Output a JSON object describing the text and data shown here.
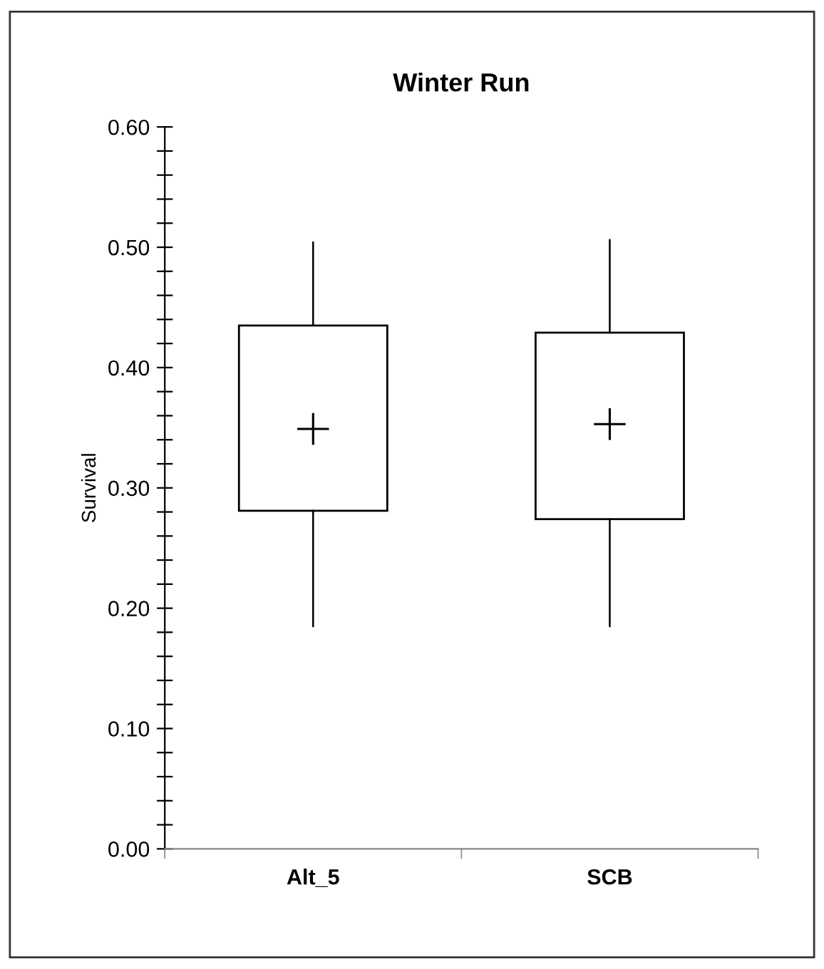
{
  "chart_data": {
    "type": "box",
    "title": "Winter Run",
    "ylabel": "Survival",
    "categories": [
      "Alt_5",
      "SCB"
    ],
    "boxes": [
      {
        "low": 0.185,
        "q1": 0.281,
        "q3": 0.435,
        "high": 0.504,
        "mean": 0.349
      },
      {
        "low": 0.185,
        "q1": 0.274,
        "q3": 0.429,
        "high": 0.506,
        "mean": 0.353
      }
    ],
    "marker": "cross",
    "grid": false,
    "legend": false,
    "ylim": [
      0,
      0.6
    ],
    "yticks": [
      "0.00",
      {
        "value": 0.02,
        "label": null
      },
      {
        "value": 0.04,
        "label": null
      },
      {
        "value": 0.06,
        "label": null
      },
      {
        "value": 0.08,
        "label": null
      },
      {
        "value": 0.1,
        "label": "0.10"
      },
      {
        "value": 0.12,
        "label": null
      },
      {
        "value": 0.14,
        "label": null
      },
      {
        "value": 0.16,
        "label": null
      },
      {
        "value": 0.18,
        "label": null
      },
      {
        "value": 0.2,
        "label": "0.20"
      },
      {
        "value": 0.22,
        "label": null
      },
      {
        "value": 0.24,
        "label": null
      },
      {
        "value": 0.26,
        "label": null
      },
      {
        "value": 0.28,
        "label": null
      },
      {
        "value": 0.3,
        "label": "0.30"
      },
      {
        "value": 0.32,
        "label": null
      },
      {
        "value": 0.34,
        "label": null
      },
      {
        "value": 0.36,
        "label": null
      },
      {
        "value": 0.38,
        "label": null
      },
      {
        "value": 0.4,
        "label": "0.40"
      },
      {
        "value": 0.42,
        "label": null
      },
      {
        "value": 0.44,
        "label": null
      },
      {
        "value": 0.46,
        "label": null
      },
      {
        "value": 0.48,
        "label": null
      },
      {
        "value": 0.5,
        "label": "0.50"
      },
      {
        "value": 0.52,
        "label": null
      },
      {
        "value": 0.54,
        "label": null
      },
      {
        "value": 0.56,
        "label": null
      },
      {
        "value": 0.58,
        "label": null
      },
      {
        "value": 0.6,
        "label": "0.60"
      }
    ]
  }
}
